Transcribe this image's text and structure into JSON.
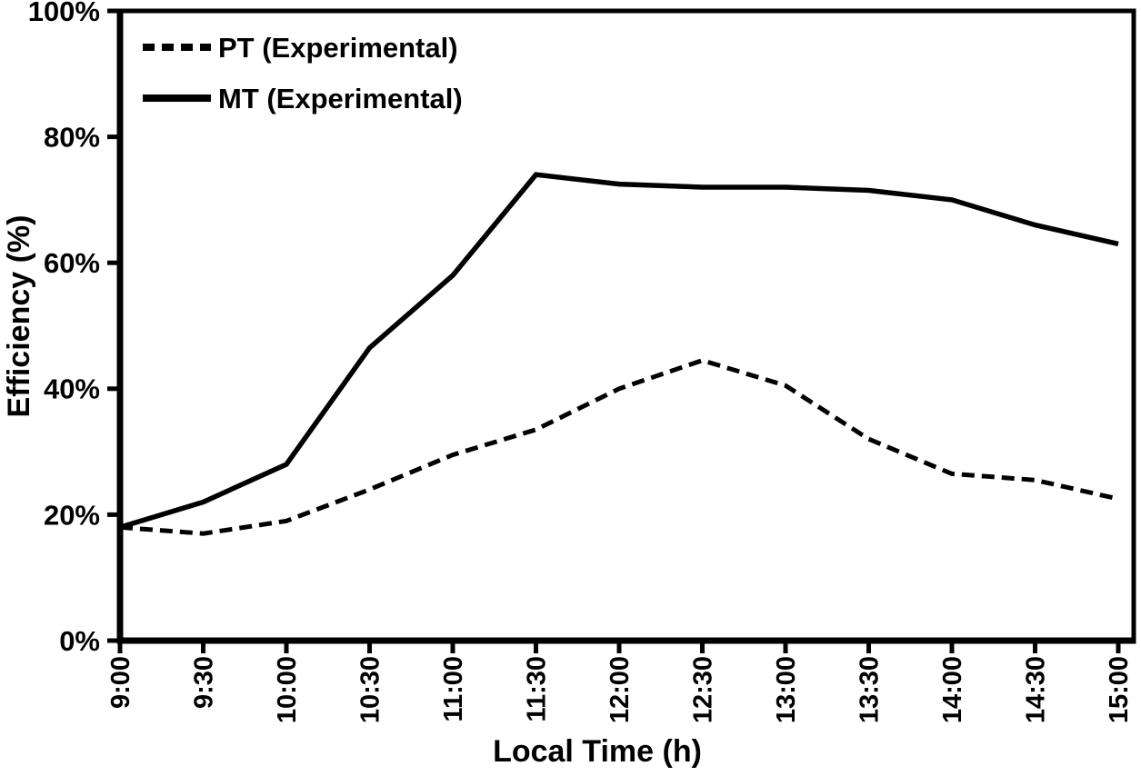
{
  "chart_data": {
    "type": "line",
    "title": "",
    "xlabel": "Local Time (h)",
    "ylabel": "Efficiency (%)",
    "x_categories": [
      "9:00",
      "9:30",
      "10:00",
      "10:30",
      "11:00",
      "11:30",
      "12:00",
      "12:30",
      "13:00",
      "13:30",
      "14:00",
      "14:30",
      "15:00"
    ],
    "y_tick_values": [
      0,
      20,
      40,
      60,
      80,
      100
    ],
    "y_tick_labels": [
      "0%",
      "20%",
      "40%",
      "60%",
      "80%",
      "100%"
    ],
    "ylim": [
      0,
      100
    ],
    "grid": false,
    "plot_frame": "full-box",
    "legend_position": "top-left-inside",
    "axis_color": "#000000",
    "background_color": "#ffffff",
    "series": [
      {
        "name": "PT (Experimental)",
        "style": "dashed",
        "color": "#000000",
        "values": [
          18,
          17,
          19,
          24,
          29.5,
          33.5,
          40,
          44.5,
          40.5,
          32,
          26.5,
          25.5,
          22.5
        ]
      },
      {
        "name": "MT (Experimental)",
        "style": "solid",
        "color": "#000000",
        "values": [
          18,
          22,
          28,
          46.5,
          58,
          74,
          72.5,
          72,
          72,
          71.5,
          70,
          66,
          63
        ]
      }
    ]
  }
}
